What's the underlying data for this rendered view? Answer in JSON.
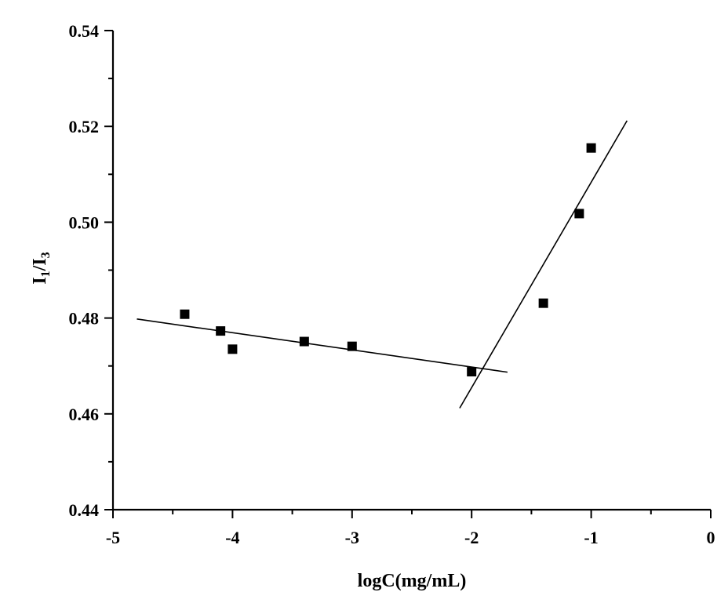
{
  "chart_data": {
    "type": "scatter",
    "title": "",
    "xlabel": "logC(mg/mL)",
    "ylabel": {
      "base1": "I",
      "sub1": "1",
      "sep": "/",
      "base2": "I",
      "sub2": "3"
    },
    "xlim": [
      -5,
      0
    ],
    "ylim": [
      0.44,
      0.54
    ],
    "x_ticks": [
      -5,
      -4,
      -3,
      -2,
      -1,
      0
    ],
    "x_tick_labels": [
      "-5",
      "-4",
      "-3",
      "-2",
      "-1",
      "0"
    ],
    "y_ticks": [
      0.44,
      0.46,
      0.48,
      0.5,
      0.52,
      0.54
    ],
    "y_tick_labels": [
      "0.44",
      "0.46",
      "0.48",
      "0.50",
      "0.52",
      "0.54"
    ],
    "grid": false,
    "legend": "none",
    "series": [
      {
        "type": "scatter",
        "marker": "square",
        "color": "#000000",
        "x": [
          -4.4,
          -4.1,
          -4.0,
          -3.4,
          -3.0,
          -2.0,
          -1.4,
          -1.1,
          -1.0
        ],
        "y": [
          0.4808,
          0.4773,
          0.4735,
          0.4751,
          0.4741,
          0.4688,
          0.4831,
          0.5018,
          0.5155
        ]
      }
    ],
    "fit_lines": [
      {
        "x": [
          -4.8,
          -1.7
        ],
        "y": [
          0.4798,
          0.4687
        ],
        "color": "#000000"
      },
      {
        "x": [
          -2.1,
          -0.7
        ],
        "y": [
          0.4612,
          0.5212
        ],
        "color": "#000000"
      }
    ]
  }
}
